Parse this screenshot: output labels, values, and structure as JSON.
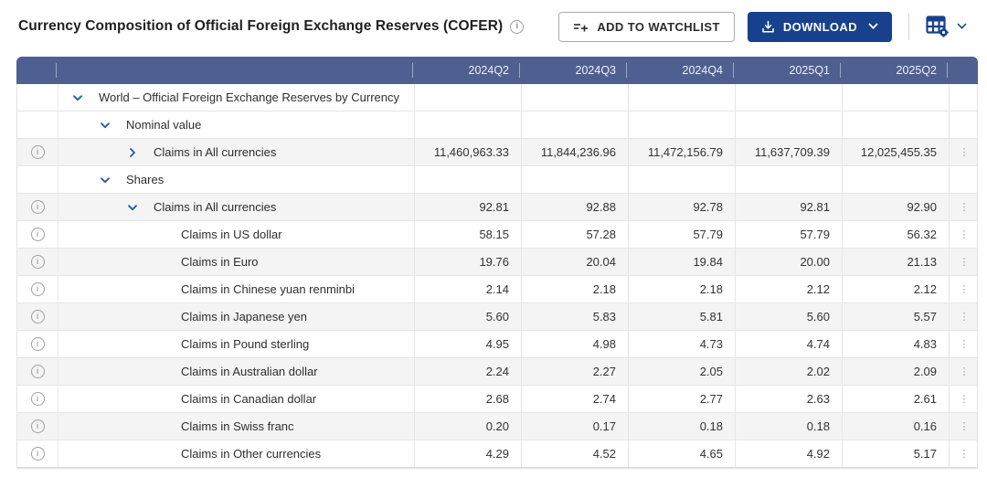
{
  "header": {
    "title": "Currency Composition of Official Foreign Exchange Reserves (COFER)",
    "title_info_icon": "info-circle",
    "watchlist_label": "ADD TO WATCHLIST",
    "download_label": "DOWNLOAD",
    "grid_settings_icon": "table-settings"
  },
  "colors": {
    "table_header_bg": "#4e5f90",
    "primary_button_bg": "#17418c",
    "expander_blue": "#2a5da8",
    "shaded_row_bg": "#f4f4f5"
  },
  "table": {
    "columns": [
      "2024Q2",
      "2024Q3",
      "2024Q4",
      "2025Q1",
      "2025Q2"
    ],
    "rows": [
      {
        "label": "World – Official Foreign Exchange Reserves by Currency",
        "level": 1,
        "expander": "down",
        "info": false,
        "values": [
          "",
          "",
          "",
          "",
          ""
        ]
      },
      {
        "label": "Nominal value",
        "level": 2,
        "expander": "down",
        "info": false,
        "values": [
          "",
          "",
          "",
          "",
          ""
        ]
      },
      {
        "label": "Claims in All currencies",
        "level": 3,
        "expander": "right",
        "info": true,
        "values": [
          "11,460,963.33",
          "11,844,236.96",
          "11,472,156.79",
          "11,637,709.39",
          "12,025,455.35"
        ]
      },
      {
        "label": "Shares",
        "level": 2,
        "expander": "down",
        "info": false,
        "values": [
          "",
          "",
          "",
          "",
          ""
        ]
      },
      {
        "label": "Claims in All currencies",
        "level": 3,
        "expander": "down",
        "info": true,
        "values": [
          "92.81",
          "92.88",
          "92.78",
          "92.81",
          "92.90"
        ]
      },
      {
        "label": "Claims in US dollar",
        "level": 4,
        "expander": "none",
        "info": true,
        "values": [
          "58.15",
          "57.28",
          "57.79",
          "57.79",
          "56.32"
        ]
      },
      {
        "label": "Claims in Euro",
        "level": 4,
        "expander": "none",
        "info": true,
        "values": [
          "19.76",
          "20.04",
          "19.84",
          "20.00",
          "21.13"
        ]
      },
      {
        "label": "Claims in Chinese yuan renminbi",
        "level": 4,
        "expander": "none",
        "info": true,
        "values": [
          "2.14",
          "2.18",
          "2.18",
          "2.12",
          "2.12"
        ]
      },
      {
        "label": "Claims in Japanese yen",
        "level": 4,
        "expander": "none",
        "info": true,
        "values": [
          "5.60",
          "5.83",
          "5.81",
          "5.60",
          "5.57"
        ]
      },
      {
        "label": "Claims in Pound sterling",
        "level": 4,
        "expander": "none",
        "info": true,
        "values": [
          "4.95",
          "4.98",
          "4.73",
          "4.74",
          "4.83"
        ]
      },
      {
        "label": "Claims in Australian dollar",
        "level": 4,
        "expander": "none",
        "info": true,
        "values": [
          "2.24",
          "2.27",
          "2.05",
          "2.02",
          "2.09"
        ]
      },
      {
        "label": "Claims in Canadian dollar",
        "level": 4,
        "expander": "none",
        "info": true,
        "values": [
          "2.68",
          "2.74",
          "2.77",
          "2.63",
          "2.61"
        ]
      },
      {
        "label": "Claims in Swiss franc",
        "level": 4,
        "expander": "none",
        "info": true,
        "values": [
          "0.20",
          "0.17",
          "0.18",
          "0.18",
          "0.16"
        ]
      },
      {
        "label": "Claims in Other currencies",
        "level": 4,
        "expander": "none",
        "info": true,
        "values": [
          "4.29",
          "4.52",
          "4.65",
          "4.92",
          "5.17"
        ]
      }
    ]
  }
}
